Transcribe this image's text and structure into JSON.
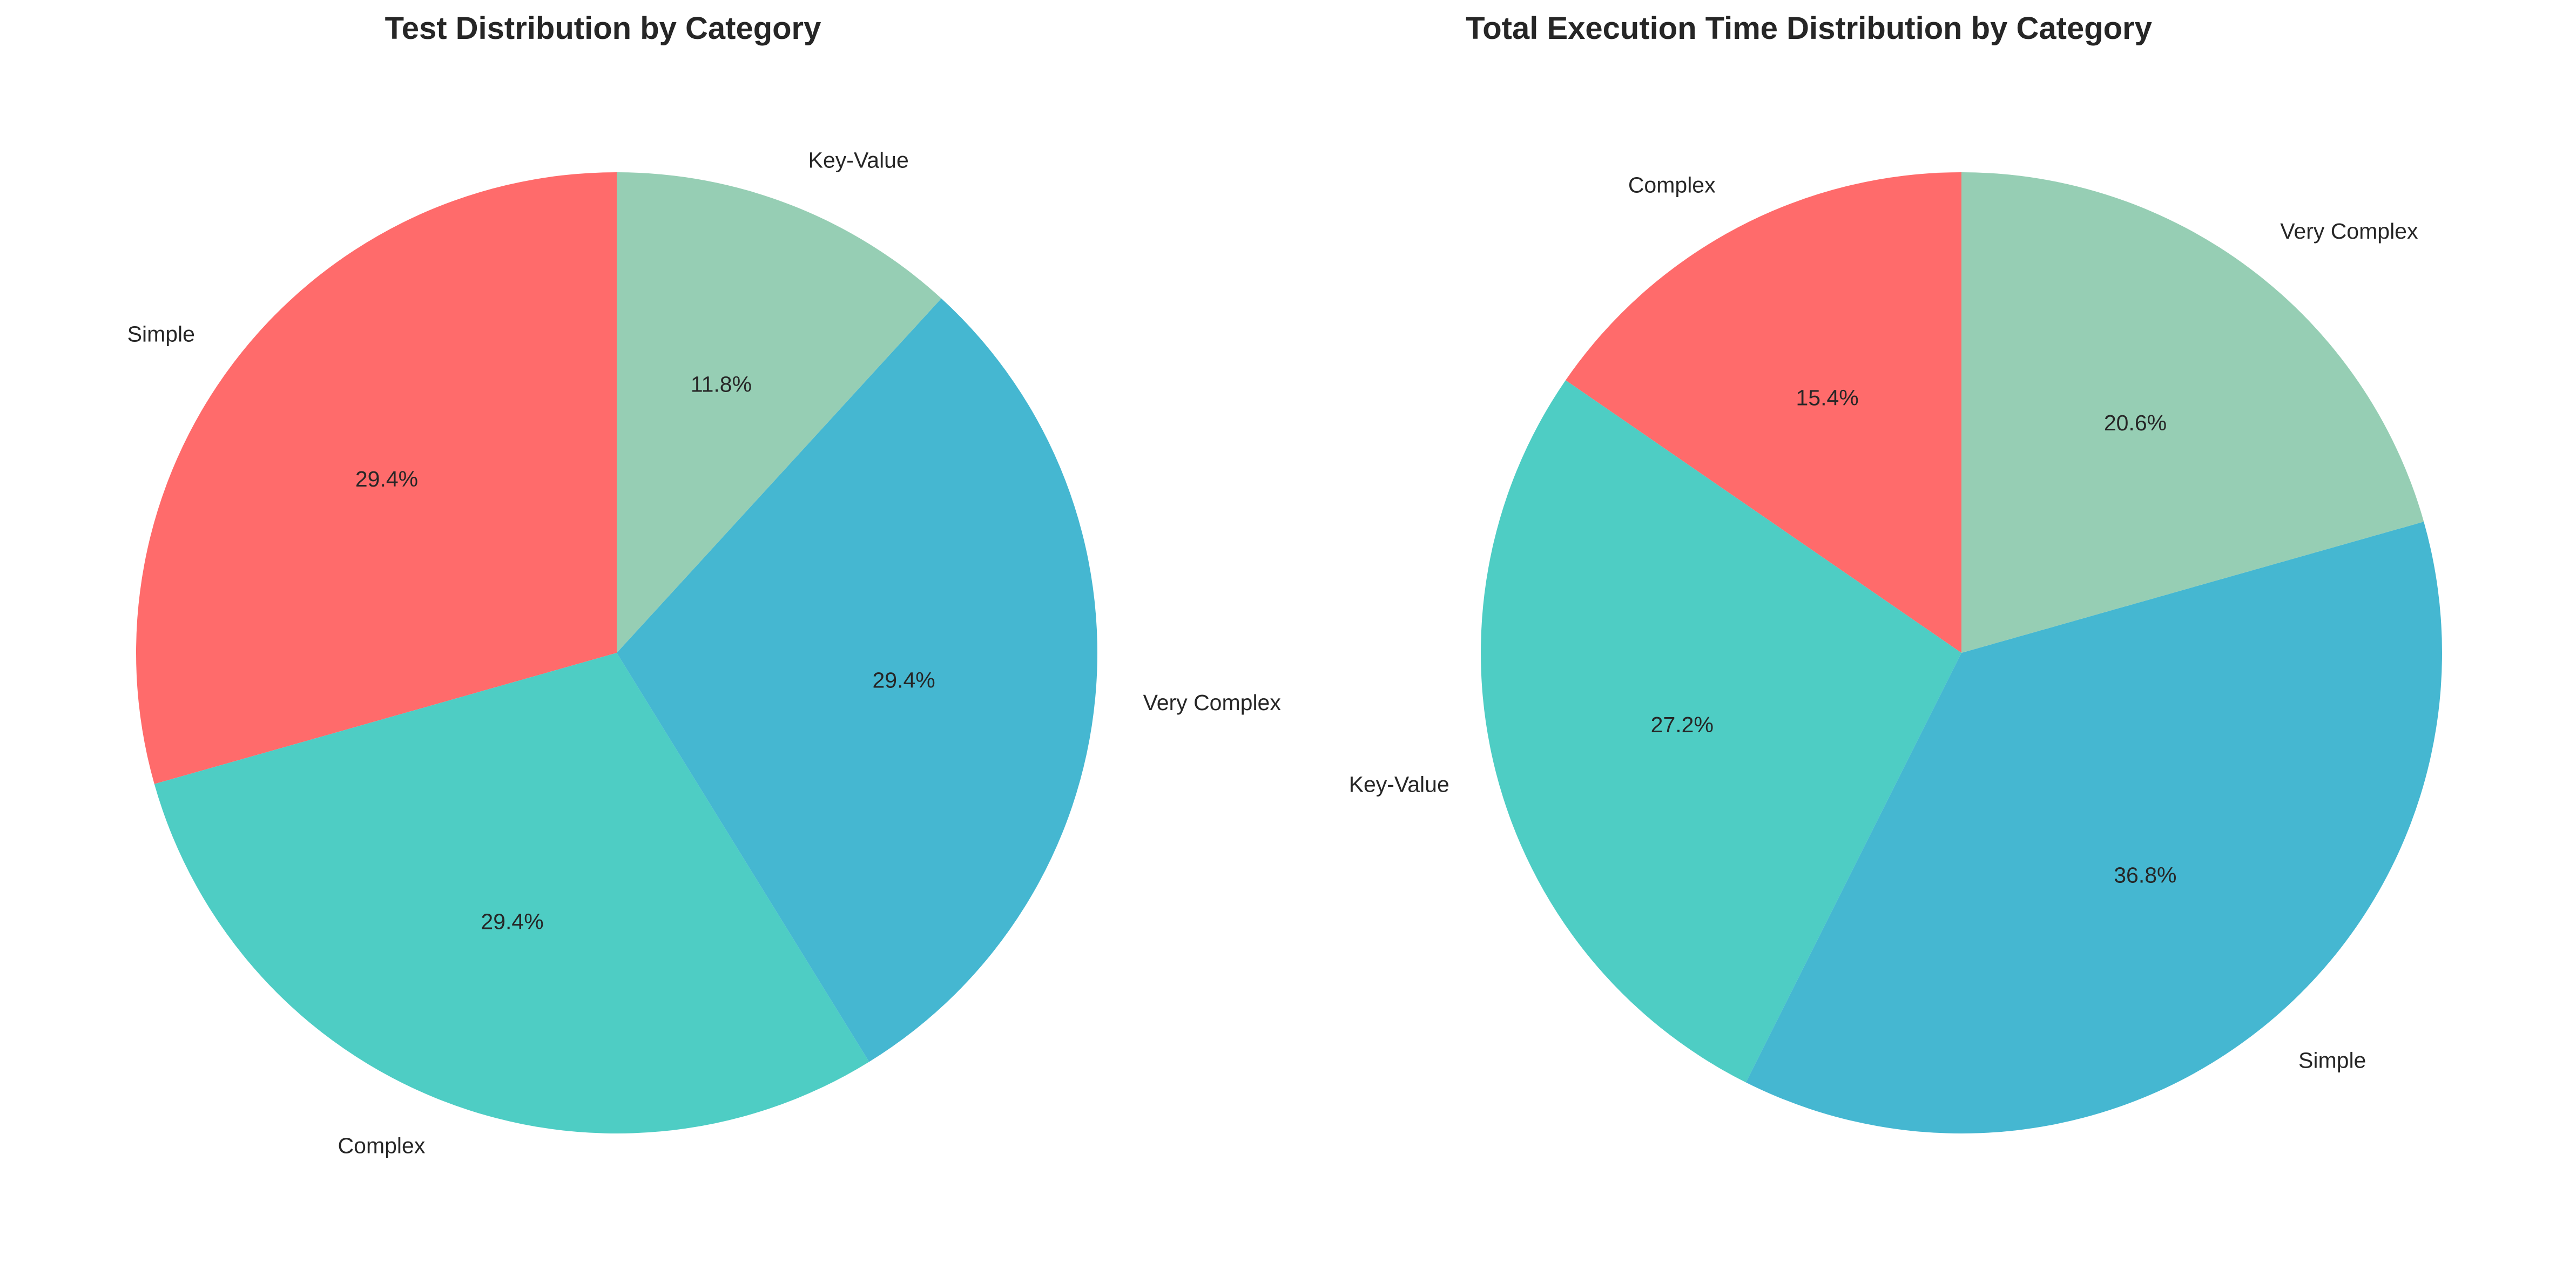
{
  "chart_data": [
    {
      "type": "pie",
      "title": "Test Distribution by Category",
      "start_angle_deg": 90,
      "direction": "counterclockwise",
      "categories": [
        "Simple",
        "Complex",
        "Very Complex",
        "Key-Value"
      ],
      "values": [
        29.4,
        29.4,
        29.4,
        11.8
      ],
      "value_labels": [
        "29.4%",
        "29.4%",
        "29.4%",
        "11.8%"
      ],
      "colors": [
        "#ff6b6b",
        "#4ecdc4",
        "#45b7d1",
        "#96ceb4"
      ]
    },
    {
      "type": "pie",
      "title": "Total Execution Time Distribution by Category",
      "start_angle_deg": 90,
      "direction": "counterclockwise",
      "categories": [
        "Complex",
        "Key-Value",
        "Simple",
        "Very Complex"
      ],
      "values": [
        15.4,
        27.2,
        36.8,
        20.6
      ],
      "value_labels": [
        "15.4%",
        "27.2%",
        "36.8%",
        "20.6%"
      ],
      "colors": [
        "#ff6b6b",
        "#4ecdc4",
        "#45b7d1",
        "#96ceb4"
      ]
    }
  ]
}
